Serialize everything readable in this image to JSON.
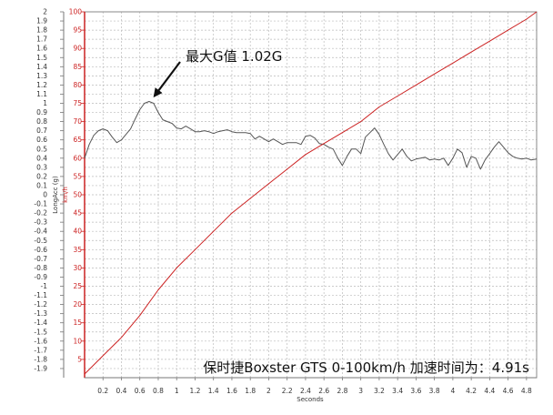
{
  "chart_data": {
    "type": "line",
    "title": "",
    "xlabel": "Seconds",
    "ylabel_left": "LongAcc (g)",
    "ylabel_right": "km/h",
    "xlim": [
      0,
      4.91
    ],
    "ylim_left": [
      -2,
      2
    ],
    "ylim_right": [
      0,
      100
    ],
    "grid": true,
    "x_ticks": [
      "0.2",
      "0.4",
      "0.6",
      "0.8",
      "1",
      "1.2",
      "1.4",
      "1.6",
      "1.8",
      "2",
      "2.2",
      "2.4",
      "2.6",
      "2.8",
      "3",
      "3.2",
      "3.4",
      "3.6",
      "3.8",
      "4",
      "4.2",
      "4.4",
      "4.6",
      "4.8"
    ],
    "y_ticks_left": [
      "2",
      "1.9",
      "1.8",
      "1.7",
      "1.6",
      "1.5",
      "1.4",
      "1.3",
      "1.2",
      "1.1",
      "1",
      "0.9",
      "0.8",
      "0.7",
      "0.6",
      "0.5",
      "0.4",
      "0.3",
      "0.2",
      "0.1",
      "0",
      "-0.1",
      "-0.2",
      "-0.3",
      "-0.4",
      "-0.5",
      "-0.6",
      "-0.7",
      "-0.8",
      "-0.9",
      "-1",
      "-1.1",
      "-1.2",
      "-1.3",
      "-1.4",
      "-1.5",
      "-1.6",
      "-1.7",
      "-1.8",
      "-1.9"
    ],
    "y_ticks_right": [
      "100",
      "95",
      "90",
      "85",
      "80",
      "75",
      "70",
      "65",
      "60",
      "55",
      "50",
      "45",
      "40",
      "35",
      "30",
      "25",
      "20",
      "15",
      "10",
      "5"
    ],
    "series": [
      {
        "axis": "left",
        "color": "#555555",
        "x": [
          0,
          0.05,
          0.1,
          0.15,
          0.2,
          0.25,
          0.3,
          0.35,
          0.4,
          0.45,
          0.5,
          0.55,
          0.6,
          0.65,
          0.7,
          0.75,
          0.8,
          0.85,
          0.9,
          0.95,
          1.0,
          1.05,
          1.1,
          1.15,
          1.2,
          1.25,
          1.3,
          1.35,
          1.4,
          1.45,
          1.5,
          1.55,
          1.6,
          1.65,
          1.7,
          1.75,
          1.8,
          1.85,
          1.9,
          1.95,
          2.0,
          2.05,
          2.1,
          2.15,
          2.2,
          2.25,
          2.3,
          2.35,
          2.4,
          2.45,
          2.5,
          2.55,
          2.6,
          2.65,
          2.7,
          2.75,
          2.8,
          2.85,
          2.9,
          2.95,
          3.0,
          3.05,
          3.1,
          3.15,
          3.2,
          3.25,
          3.3,
          3.35,
          3.4,
          3.45,
          3.5,
          3.55,
          3.6,
          3.65,
          3.7,
          3.75,
          3.8,
          3.85,
          3.9,
          3.95,
          4.0,
          4.05,
          4.1,
          4.15,
          4.2,
          4.25,
          4.3,
          4.35,
          4.4,
          4.45,
          4.5,
          4.55,
          4.6,
          4.65,
          4.7,
          4.75,
          4.8,
          4.85,
          4.91
        ],
        "y": [
          0.4,
          0.55,
          0.65,
          0.7,
          0.72,
          0.7,
          0.63,
          0.57,
          0.6,
          0.66,
          0.72,
          0.83,
          0.93,
          1.0,
          1.02,
          1.0,
          0.9,
          0.82,
          0.8,
          0.78,
          0.73,
          0.72,
          0.75,
          0.72,
          0.69,
          0.69,
          0.7,
          0.69,
          0.67,
          0.69,
          0.7,
          0.71,
          0.69,
          0.68,
          0.68,
          0.68,
          0.67,
          0.61,
          0.64,
          0.61,
          0.58,
          0.61,
          0.58,
          0.55,
          0.57,
          0.57,
          0.57,
          0.55,
          0.64,
          0.65,
          0.62,
          0.56,
          0.55,
          0.52,
          0.5,
          0.4,
          0.32,
          0.42,
          0.5,
          0.5,
          0.45,
          0.63,
          0.68,
          0.73,
          0.66,
          0.55,
          0.45,
          0.38,
          0.44,
          0.5,
          0.42,
          0.37,
          0.39,
          0.4,
          0.41,
          0.38,
          0.39,
          0.38,
          0.4,
          0.32,
          0.4,
          0.5,
          0.46,
          0.3,
          0.42,
          0.4,
          0.28,
          0.38,
          0.45,
          0.52,
          0.58,
          0.52,
          0.46,
          0.42,
          0.4,
          0.39,
          0.4,
          0.38,
          0.39
        ]
      },
      {
        "axis": "right",
        "color": "#cc2222",
        "x": [
          0,
          0.2,
          0.4,
          0.6,
          0.8,
          1.0,
          1.2,
          1.4,
          1.6,
          1.8,
          2.0,
          2.2,
          2.4,
          2.6,
          2.8,
          3.0,
          3.2,
          3.4,
          3.6,
          3.8,
          4.0,
          4.2,
          4.4,
          4.6,
          4.8,
          4.91
        ],
        "y": [
          1,
          6,
          11,
          17,
          24,
          30,
          35,
          40,
          45,
          49,
          53,
          57,
          61,
          64,
          67,
          70,
          74,
          77,
          80,
          83,
          86,
          89,
          92,
          95,
          98,
          100
        ]
      }
    ],
    "annotations": [
      {
        "text": "最大G值 1.02G",
        "points_to": {
          "x": 0.7,
          "y": 1.02
        }
      }
    ],
    "caption": "保时捷Boxster GTS 0-100km/h 加速时间为：4.91s"
  }
}
